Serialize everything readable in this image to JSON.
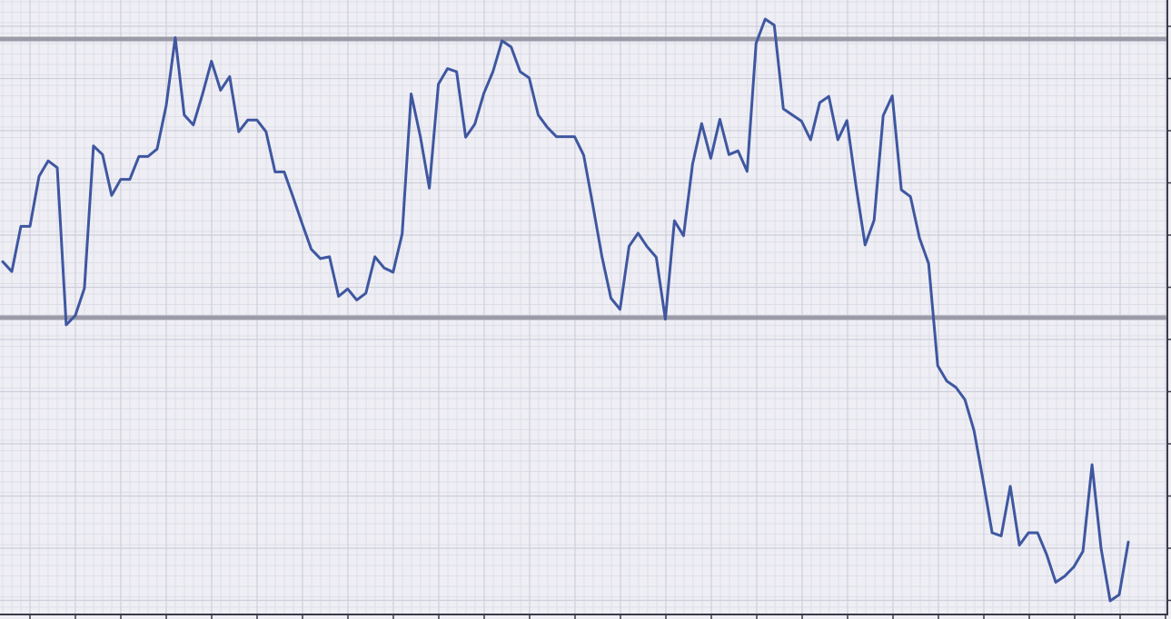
{
  "chart_data": {
    "type": "line",
    "title": "",
    "xlabel": "",
    "ylabel": "",
    "x_range": [
      0,
      127
    ],
    "y_range": [
      0,
      100
    ],
    "grid": true,
    "legend": "none",
    "colors": {
      "background": "#eeeef4",
      "grid_major": "#cfcfdc",
      "grid_minor": "#dedee8",
      "series": "#3f57a0",
      "reference_lines": "#9a9aa8",
      "axis": "#3a3a48"
    },
    "reference_lines": [
      {
        "axis": "y",
        "value": 93.4
      },
      {
        "axis": "y",
        "value": 48.3
      }
    ],
    "series": [
      {
        "values": [
          57.8,
          56.2,
          63.5,
          63.5,
          71.6,
          74.1,
          73.0,
          47.6,
          49.1,
          53.5,
          76.5,
          75.1,
          68.5,
          71.1,
          71.1,
          74.8,
          74.8,
          76.0,
          83.0,
          94.0,
          81.5,
          79.9,
          84.8,
          90.2,
          85.5,
          87.7,
          78.8,
          80.7,
          80.7,
          78.8,
          72.3,
          72.3,
          68.2,
          63.9,
          59.8,
          58.3,
          58.6,
          52.2,
          53.4,
          51.6,
          52.7,
          58.6,
          56.8,
          56.1,
          62.3,
          84.9,
          78.1,
          69.7,
          86.5,
          89.0,
          88.5,
          77.9,
          80.0,
          85.0,
          88.5,
          93.5,
          92.5,
          88.5,
          87.5,
          81.5,
          79.5,
          78.0,
          78.0,
          78.0,
          75.0,
          67.0,
          58.7,
          51.9,
          50.1,
          60.3,
          62.4,
          60.2,
          58.5,
          48.5,
          64.4,
          62.0,
          73.6,
          80.1,
          74.5,
          80.8,
          75.1,
          75.7,
          72.4,
          93.1,
          97.0,
          96.0,
          82.5,
          81.5,
          80.5,
          77.5,
          83.5,
          84.5,
          77.5,
          80.6,
          70.0,
          60.5,
          64.5,
          81.4,
          84.6,
          69.4,
          68.3,
          61.6,
          57.5,
          41.0,
          38.5,
          37.5,
          35.5,
          30.5,
          22.5,
          14.0,
          13.5,
          21.5,
          12.0,
          14.0,
          14.0,
          10.5,
          6.0,
          7.0,
          8.5,
          11.0,
          25.0,
          11.5,
          3.0,
          4.0,
          12.5
        ]
      }
    ]
  }
}
